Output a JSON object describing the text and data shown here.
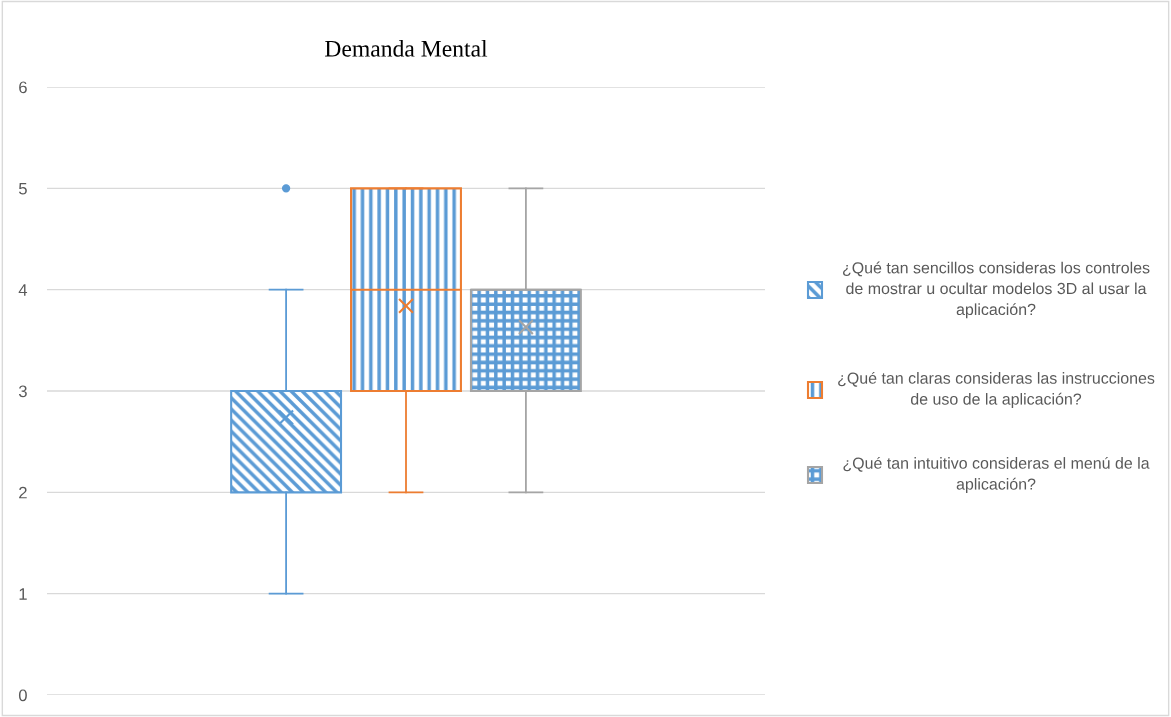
{
  "chart_data": {
    "type": "box",
    "title": "Demanda Mental",
    "categories": [
      null
    ],
    "ylim": [
      0,
      6
    ],
    "yticks": [
      0,
      1,
      2,
      3,
      4,
      5,
      6
    ],
    "grid": "y",
    "legend": "right",
    "marker": "circle",
    "series": [
      {
        "name": "¿Qué tan sencillos consideras los controles de mostrar u ocultar modelos 3D al usar la aplicación?",
        "color": "#5b9bd5",
        "boxes": [
          {
            "low": 1,
            "q1": 2,
            "median": 3,
            "q3": 3,
            "high": 4,
            "mean": 2.74,
            "outliers": [
              5
            ]
          }
        ]
      },
      {
        "name": "¿Qué tan claras consideras las instrucciones de uso de la aplicación?",
        "color": "#ed7d31",
        "boxes": [
          {
            "low": 2,
            "q1": 3,
            "median": 4,
            "q3": 5,
            "high": 5,
            "mean": 3.84
          }
        ]
      },
      {
        "name": "¿Qué tan intuitivo consideras el menú de la aplicación?",
        "color": "#a5a5a5",
        "boxes": [
          {
            "low": 2,
            "q1": 3,
            "median": 4,
            "q3": 4,
            "high": 5,
            "mean": 3.63
          }
        ]
      }
    ]
  }
}
